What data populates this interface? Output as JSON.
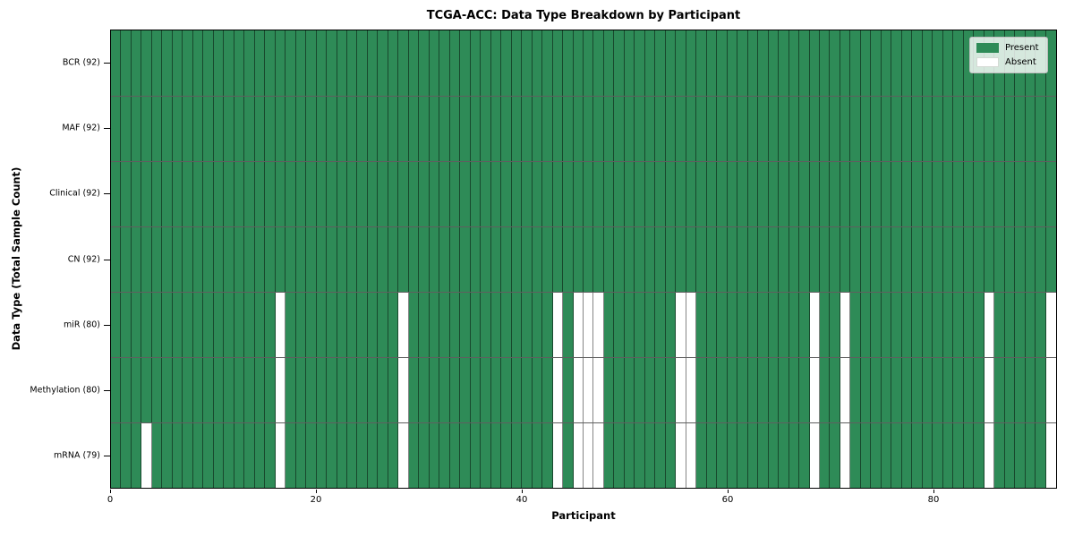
{
  "chart_data": {
    "type": "heatmap",
    "title": "TCGA-ACC: Data Type Breakdown by Participant",
    "xlabel": "Participant",
    "ylabel": "Data Type (Total Sample Count)",
    "n_participants": 92,
    "x_ticks": [
      0,
      20,
      40,
      60,
      80
    ],
    "grid": false,
    "legend": {
      "position": "upper right",
      "items": [
        {
          "label": "Present",
          "color": "#2e8b57"
        },
        {
          "label": "Absent",
          "color": "#ffffff"
        }
      ]
    },
    "colors": {
      "present": "#2e8b57",
      "absent": "#ffffff"
    },
    "rows": [
      {
        "label": "BCR (92)",
        "data_type": "bcr",
        "present_count": 92,
        "absent_participants": []
      },
      {
        "label": "MAF (92)",
        "data_type": "maf",
        "present_count": 92,
        "absent_participants": []
      },
      {
        "label": "Clinical (92)",
        "data_type": "clinical",
        "present_count": 92,
        "absent_participants": []
      },
      {
        "label": "CN (92)",
        "data_type": "cn",
        "present_count": 92,
        "absent_participants": []
      },
      {
        "label": "miR (80)",
        "data_type": "mir",
        "present_count": 80,
        "absent_participants": [
          16,
          28,
          43,
          45,
          46,
          47,
          55,
          56,
          68,
          71,
          85,
          91
        ]
      },
      {
        "label": "Methylation (80)",
        "data_type": "methylation",
        "present_count": 80,
        "absent_participants": [
          16,
          28,
          43,
          45,
          46,
          47,
          55,
          56,
          68,
          71,
          85,
          91
        ]
      },
      {
        "label": "mRNA (79)",
        "data_type": "mrna",
        "present_count": 79,
        "absent_participants": [
          3,
          16,
          28,
          43,
          45,
          46,
          47,
          55,
          56,
          68,
          71,
          85,
          91
        ]
      }
    ]
  }
}
